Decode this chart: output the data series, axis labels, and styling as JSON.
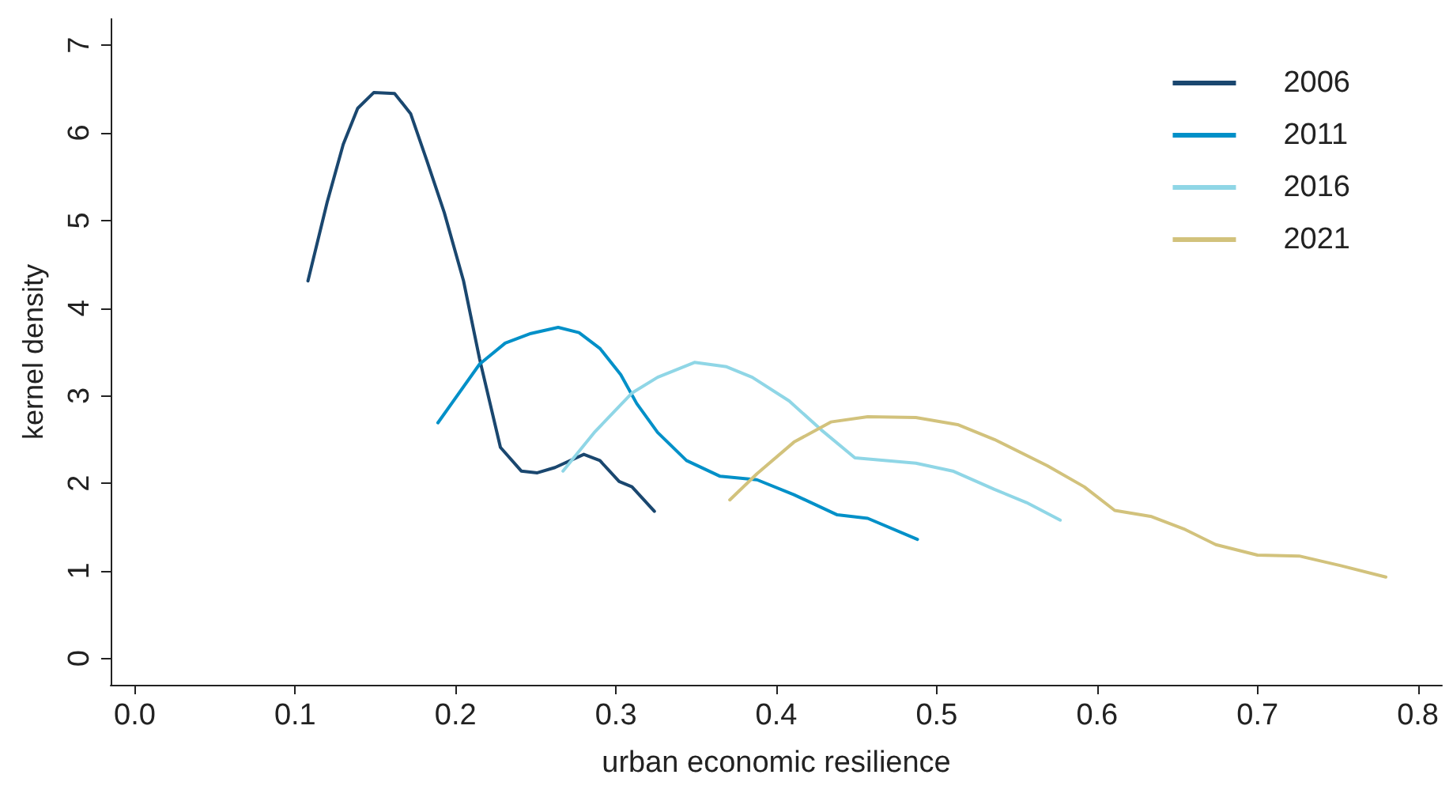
{
  "chart_data": {
    "type": "line",
    "xlabel": "urban economic resilience",
    "ylabel": "kernel density",
    "xlim": [
      -0.015,
      0.815
    ],
    "xticks": [
      {
        "value": 0,
        "label": "0.0"
      },
      0.1,
      0.2,
      0.3,
      0.4,
      0.5,
      0.6,
      0.7,
      0.8
    ],
    "ylim": [
      -0.3,
      7.3
    ],
    "yticks": [
      0,
      1,
      2,
      3,
      4,
      5,
      6,
      7
    ],
    "grid": false,
    "legend": "top right",
    "marker": "none",
    "line_style": "solid",
    "series": [
      {
        "name": "2006",
        "color": "#1a476f",
        "x": [
          0.108,
          0.12,
          0.13,
          0.139,
          0.149,
          0.162,
          0.172,
          0.182,
          0.193,
          0.205,
          0.215,
          0.228,
          0.241,
          0.251,
          0.262,
          0.28,
          0.29,
          0.302,
          0.31,
          0.324
        ],
        "values": [
          4.31,
          5.21,
          5.87,
          6.28,
          6.46,
          6.45,
          6.22,
          5.69,
          5.09,
          4.31,
          3.42,
          2.41,
          2.14,
          2.12,
          2.18,
          2.33,
          2.26,
          2.02,
          1.96,
          1.68
        ]
      },
      {
        "name": "2011",
        "color": "#0090c8",
        "x": [
          0.189,
          0.215,
          0.231,
          0.247,
          0.264,
          0.277,
          0.29,
          0.303,
          0.313,
          0.326,
          0.344,
          0.365,
          0.388,
          0.411,
          0.438,
          0.457,
          0.488
        ],
        "values": [
          2.69,
          3.36,
          3.6,
          3.71,
          3.78,
          3.72,
          3.54,
          3.24,
          2.91,
          2.58,
          2.26,
          2.08,
          2.04,
          1.87,
          1.64,
          1.6,
          1.36
        ]
      },
      {
        "name": "2016",
        "color": "#8fd6e6",
        "x": [
          0.267,
          0.287,
          0.31,
          0.326,
          0.349,
          0.369,
          0.385,
          0.408,
          0.428,
          0.449,
          0.487,
          0.51,
          0.536,
          0.556,
          0.577
        ],
        "values": [
          2.14,
          2.59,
          3.03,
          3.21,
          3.38,
          3.33,
          3.21,
          2.94,
          2.61,
          2.29,
          2.23,
          2.14,
          1.93,
          1.78,
          1.58
        ]
      },
      {
        "name": "2021",
        "color": "#d2c27c",
        "x": [
          0.371,
          0.388,
          0.411,
          0.434,
          0.457,
          0.487,
          0.513,
          0.536,
          0.569,
          0.592,
          0.611,
          0.634,
          0.654,
          0.674,
          0.7,
          0.726,
          0.752,
          0.78
        ],
        "values": [
          1.81,
          2.11,
          2.47,
          2.7,
          2.76,
          2.75,
          2.67,
          2.5,
          2.2,
          1.96,
          1.69,
          1.62,
          1.48,
          1.3,
          1.18,
          1.17,
          1.06,
          0.93
        ]
      }
    ]
  }
}
